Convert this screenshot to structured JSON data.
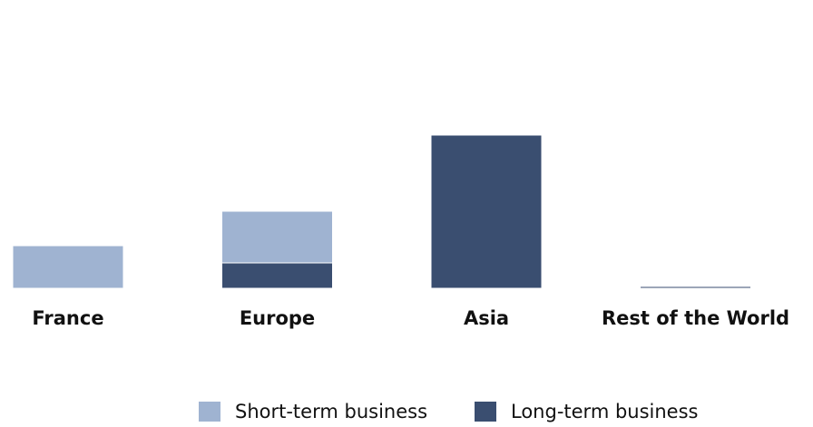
{
  "chart_data": {
    "type": "stacked_bar",
    "categories": [
      "France",
      "Europe",
      "Asia",
      "Rest of the World"
    ],
    "series": [
      {
        "name": "Short-term business",
        "color": "#9fb3d1",
        "values": [
          47,
          57,
          0,
          1
        ]
      },
      {
        "name": "Long-term business",
        "color": "#3a4e70",
        "values": [
          0,
          28,
          169,
          2
        ]
      }
    ],
    "ylim": [
      0,
      200
    ],
    "stack_order": [
      "Long-term business",
      "Short-term business"
    ],
    "legend": "bottom"
  }
}
